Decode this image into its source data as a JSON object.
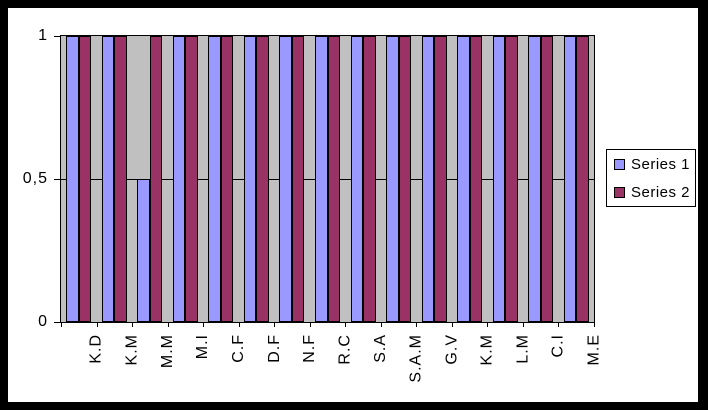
{
  "chart_data": {
    "type": "bar",
    "title": "",
    "xlabel": "",
    "ylabel": "",
    "categories": [
      "K.D",
      "K.M",
      "M.M",
      "M.I",
      "C.F",
      "D.F",
      "N.F",
      "R.C",
      "S.A",
      "S.A.M",
      "G.V",
      "K.M",
      "L.M",
      "C.I",
      "M.E"
    ],
    "series": [
      {
        "name": "Series 1",
        "color": "#9999FF",
        "values": [
          1,
          1,
          0.5,
          1,
          1,
          1,
          1,
          1,
          1,
          1,
          1,
          1,
          1,
          1,
          1
        ]
      },
      {
        "name": "Series 2",
        "color": "#993366",
        "values": [
          1,
          1,
          1,
          1,
          1,
          1,
          1,
          1,
          1,
          1,
          1,
          1,
          1,
          1,
          1
        ]
      }
    ],
    "ylim": [
      0,
      1
    ],
    "yticks": [
      {
        "value": 0,
        "label": "0"
      },
      {
        "value": 0.5,
        "label": "0,5"
      },
      {
        "value": 1,
        "label": "1"
      }
    ],
    "grid": {
      "horizontal": true,
      "values": [
        0.5
      ]
    },
    "legend": {
      "position": "right",
      "entries": [
        "Series 1",
        "Series 2"
      ]
    },
    "colors": {
      "plot_bg": "#C0C0C0",
      "chart_bg": "#FFFFFF",
      "frame": "#000000",
      "axis": "#000000",
      "bar_border": "#000000"
    }
  }
}
